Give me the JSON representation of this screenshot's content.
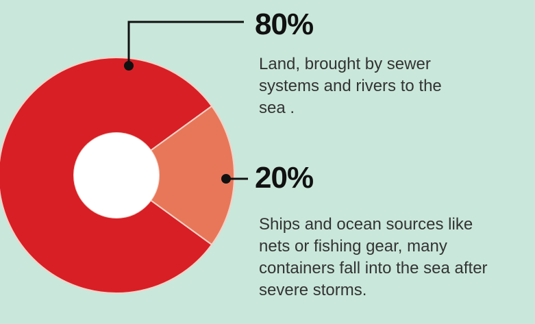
{
  "chart_data": {
    "type": "pie",
    "segments": [
      {
        "value": 80,
        "percent_label": "80%",
        "description_lines": [
          "Land, brought by sewer",
          "systems and rivers to the",
          "sea ."
        ],
        "color": "#d81f26"
      },
      {
        "value": 20,
        "percent_label": "20%",
        "description_lines": [
          "Ships and ocean sources like",
          "nets or fishing gear, many",
          "containers fall into the sea after",
          "severe storms."
        ],
        "color": "#e8775a"
      }
    ]
  },
  "colors": {
    "background": "#c9e7da",
    "slice_border": "#f3d2c6",
    "hole": "#ffffff",
    "leader": "#111111"
  }
}
